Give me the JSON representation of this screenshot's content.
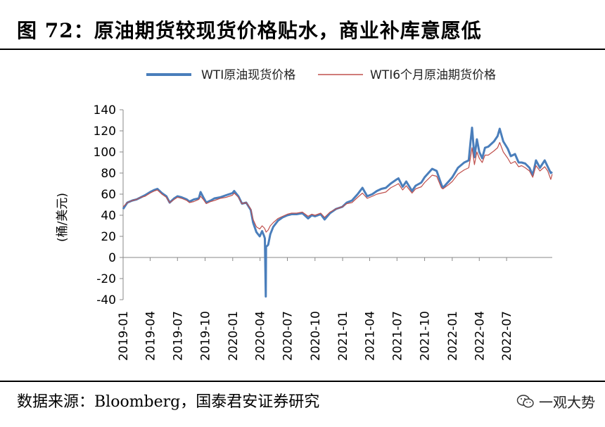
{
  "header": {
    "title": "图 72：原油期货较现货价格贴水，商业补库意愿低"
  },
  "footer": {
    "source": "数据来源：Bloomberg，国泰君安证券研究",
    "watermark": "一观大势"
  },
  "chart_data": {
    "type": "line",
    "title": "",
    "ylabel": "(桶/美元)",
    "ylim": [
      -40,
      140
    ],
    "yticks": [
      140,
      120,
      100,
      80,
      60,
      40,
      20,
      0,
      -20,
      -40
    ],
    "xticks": [
      "2019-01",
      "2019-04",
      "2019-07",
      "2019-10",
      "2020-01",
      "2020-04",
      "2020-07",
      "2020-10",
      "2021-01",
      "2021-04",
      "2021-07",
      "2021-10",
      "2022-01",
      "2022-04",
      "2022-07"
    ],
    "x_range": [
      "2019-01-01",
      "2022-11-30"
    ],
    "legend_position": "top",
    "grid": false,
    "series": [
      {
        "name": "WTI原油现货价格",
        "color": "#4a7ebb",
        "points": [
          [
            "2019-01-01",
            46
          ],
          [
            "2019-01-15",
            52
          ],
          [
            "2019-02-01",
            54
          ],
          [
            "2019-02-15",
            55
          ],
          [
            "2019-03-01",
            57
          ],
          [
            "2019-03-15",
            59
          ],
          [
            "2019-04-01",
            62
          ],
          [
            "2019-04-15",
            64
          ],
          [
            "2019-04-25",
            65
          ],
          [
            "2019-05-10",
            61
          ],
          [
            "2019-05-25",
            58
          ],
          [
            "2019-06-05",
            52
          ],
          [
            "2019-06-20",
            56
          ],
          [
            "2019-07-01",
            58
          ],
          [
            "2019-07-15",
            57
          ],
          [
            "2019-08-01",
            55
          ],
          [
            "2019-08-10",
            53
          ],
          [
            "2019-08-25",
            55
          ],
          [
            "2019-09-10",
            56
          ],
          [
            "2019-09-16",
            62
          ],
          [
            "2019-09-25",
            57
          ],
          [
            "2019-10-05",
            52
          ],
          [
            "2019-10-20",
            54
          ],
          [
            "2019-11-01",
            56
          ],
          [
            "2019-11-20",
            57
          ],
          [
            "2019-12-10",
            59
          ],
          [
            "2019-12-31",
            61
          ],
          [
            "2020-01-06",
            63
          ],
          [
            "2020-01-20",
            58
          ],
          [
            "2020-02-01",
            51
          ],
          [
            "2020-02-15",
            52
          ],
          [
            "2020-03-01",
            45
          ],
          [
            "2020-03-09",
            33
          ],
          [
            "2020-03-20",
            24
          ],
          [
            "2020-03-31",
            20
          ],
          [
            "2020-04-08",
            25
          ],
          [
            "2020-04-15",
            20
          ],
          [
            "2020-04-17",
            18
          ],
          [
            "2020-04-20",
            -37
          ],
          [
            "2020-04-21",
            10
          ],
          [
            "2020-04-28",
            12
          ],
          [
            "2020-05-05",
            22
          ],
          [
            "2020-05-15",
            29
          ],
          [
            "2020-05-31",
            35
          ],
          [
            "2020-06-15",
            38
          ],
          [
            "2020-07-01",
            40
          ],
          [
            "2020-07-15",
            41
          ],
          [
            "2020-08-01",
            41
          ],
          [
            "2020-08-20",
            42
          ],
          [
            "2020-09-08",
            37
          ],
          [
            "2020-09-20",
            40
          ],
          [
            "2020-10-01",
            39
          ],
          [
            "2020-10-20",
            41
          ],
          [
            "2020-11-02",
            36
          ],
          [
            "2020-11-20",
            42
          ],
          [
            "2020-12-10",
            46
          ],
          [
            "2020-12-31",
            48
          ],
          [
            "2021-01-15",
            52
          ],
          [
            "2021-02-01",
            54
          ],
          [
            "2021-02-20",
            60
          ],
          [
            "2021-03-08",
            66
          ],
          [
            "2021-03-24",
            58
          ],
          [
            "2021-04-10",
            60
          ],
          [
            "2021-04-25",
            63
          ],
          [
            "2021-05-10",
            65
          ],
          [
            "2021-05-25",
            66
          ],
          [
            "2021-06-10",
            70
          ],
          [
            "2021-06-30",
            74
          ],
          [
            "2021-07-06",
            75
          ],
          [
            "2021-07-20",
            67
          ],
          [
            "2021-08-01",
            72
          ],
          [
            "2021-08-20",
            63
          ],
          [
            "2021-09-01",
            68
          ],
          [
            "2021-09-20",
            71
          ],
          [
            "2021-10-01",
            76
          ],
          [
            "2021-10-26",
            84
          ],
          [
            "2021-11-10",
            82
          ],
          [
            "2021-11-26",
            69
          ],
          [
            "2021-12-01",
            66
          ],
          [
            "2021-12-20",
            72
          ],
          [
            "2022-01-01",
            76
          ],
          [
            "2022-01-20",
            85
          ],
          [
            "2022-02-10",
            90
          ],
          [
            "2022-02-25",
            92
          ],
          [
            "2022-03-03",
            110
          ],
          [
            "2022-03-08",
            123
          ],
          [
            "2022-03-16",
            95
          ],
          [
            "2022-03-24",
            112
          ],
          [
            "2022-04-01",
            100
          ],
          [
            "2022-04-11",
            94
          ],
          [
            "2022-04-20",
            104
          ],
          [
            "2022-05-01",
            105
          ],
          [
            "2022-05-20",
            110
          ],
          [
            "2022-06-01",
            115
          ],
          [
            "2022-06-08",
            122
          ],
          [
            "2022-06-20",
            110
          ],
          [
            "2022-07-05",
            103
          ],
          [
            "2022-07-15",
            96
          ],
          [
            "2022-07-29",
            98
          ],
          [
            "2022-08-10",
            90
          ],
          [
            "2022-08-20",
            90
          ],
          [
            "2022-09-01",
            89
          ],
          [
            "2022-09-15",
            85
          ],
          [
            "2022-09-26",
            78
          ],
          [
            "2022-10-07",
            92
          ],
          [
            "2022-10-20",
            85
          ],
          [
            "2022-11-05",
            92
          ],
          [
            "2022-11-15",
            86
          ],
          [
            "2022-11-25",
            80
          ],
          [
            "2022-11-30",
            81
          ]
        ]
      },
      {
        "name": "WTI6个月原油期货价格",
        "color": "#c0504d",
        "points": [
          [
            "2019-01-01",
            48
          ],
          [
            "2019-01-15",
            52
          ],
          [
            "2019-02-01",
            54
          ],
          [
            "2019-02-15",
            55
          ],
          [
            "2019-03-01",
            57
          ],
          [
            "2019-03-15",
            58
          ],
          [
            "2019-04-01",
            61
          ],
          [
            "2019-04-15",
            63
          ],
          [
            "2019-04-25",
            64
          ],
          [
            "2019-05-10",
            60
          ],
          [
            "2019-05-25",
            57
          ],
          [
            "2019-06-05",
            52
          ],
          [
            "2019-06-20",
            55
          ],
          [
            "2019-07-01",
            57
          ],
          [
            "2019-07-15",
            56
          ],
          [
            "2019-08-01",
            54
          ],
          [
            "2019-08-10",
            52
          ],
          [
            "2019-08-25",
            53
          ],
          [
            "2019-09-10",
            55
          ],
          [
            "2019-09-16",
            58
          ],
          [
            "2019-09-25",
            55
          ],
          [
            "2019-10-05",
            51
          ],
          [
            "2019-10-20",
            53
          ],
          [
            "2019-11-01",
            54
          ],
          [
            "2019-11-20",
            56
          ],
          [
            "2019-12-10",
            57
          ],
          [
            "2019-12-31",
            59
          ],
          [
            "2020-01-06",
            61
          ],
          [
            "2020-01-20",
            57
          ],
          [
            "2020-02-01",
            51
          ],
          [
            "2020-02-15",
            52
          ],
          [
            "2020-03-01",
            46
          ],
          [
            "2020-03-09",
            36
          ],
          [
            "2020-03-20",
            29
          ],
          [
            "2020-03-31",
            27
          ],
          [
            "2020-04-08",
            30
          ],
          [
            "2020-04-15",
            28
          ],
          [
            "2020-04-17",
            27
          ],
          [
            "2020-04-20",
            25
          ],
          [
            "2020-04-21",
            24
          ],
          [
            "2020-04-28",
            26
          ],
          [
            "2020-05-05",
            30
          ],
          [
            "2020-05-15",
            33
          ],
          [
            "2020-05-31",
            37
          ],
          [
            "2020-06-15",
            39
          ],
          [
            "2020-07-01",
            41
          ],
          [
            "2020-07-15",
            42
          ],
          [
            "2020-08-01",
            42
          ],
          [
            "2020-08-20",
            43
          ],
          [
            "2020-09-08",
            39
          ],
          [
            "2020-09-20",
            41
          ],
          [
            "2020-10-01",
            40
          ],
          [
            "2020-10-20",
            42
          ],
          [
            "2020-11-02",
            38
          ],
          [
            "2020-11-20",
            43
          ],
          [
            "2020-12-10",
            46
          ],
          [
            "2020-12-31",
            48
          ],
          [
            "2021-01-15",
            51
          ],
          [
            "2021-02-01",
            52
          ],
          [
            "2021-02-20",
            57
          ],
          [
            "2021-03-08",
            61
          ],
          [
            "2021-03-24",
            56
          ],
          [
            "2021-04-10",
            58
          ],
          [
            "2021-04-25",
            60
          ],
          [
            "2021-05-10",
            61
          ],
          [
            "2021-05-25",
            62
          ],
          [
            "2021-06-10",
            66
          ],
          [
            "2021-06-30",
            69
          ],
          [
            "2021-07-06",
            70
          ],
          [
            "2021-07-20",
            64
          ],
          [
            "2021-08-01",
            68
          ],
          [
            "2021-08-20",
            61
          ],
          [
            "2021-09-01",
            65
          ],
          [
            "2021-09-20",
            67
          ],
          [
            "2021-10-01",
            71
          ],
          [
            "2021-10-26",
            78
          ],
          [
            "2021-11-10",
            77
          ],
          [
            "2021-11-26",
            66
          ],
          [
            "2021-12-01",
            65
          ],
          [
            "2021-12-20",
            69
          ],
          [
            "2022-01-01",
            72
          ],
          [
            "2022-01-20",
            79
          ],
          [
            "2022-02-10",
            83
          ],
          [
            "2022-02-25",
            85
          ],
          [
            "2022-03-03",
            95
          ],
          [
            "2022-03-08",
            104
          ],
          [
            "2022-03-16",
            88
          ],
          [
            "2022-03-24",
            100
          ],
          [
            "2022-04-01",
            94
          ],
          [
            "2022-04-11",
            90
          ],
          [
            "2022-04-20",
            97
          ],
          [
            "2022-05-01",
            97
          ],
          [
            "2022-05-20",
            101
          ],
          [
            "2022-06-01",
            104
          ],
          [
            "2022-06-08",
            109
          ],
          [
            "2022-06-20",
            100
          ],
          [
            "2022-07-05",
            94
          ],
          [
            "2022-07-15",
            89
          ],
          [
            "2022-07-29",
            91
          ],
          [
            "2022-08-10",
            86
          ],
          [
            "2022-08-20",
            87
          ],
          [
            "2022-09-01",
            85
          ],
          [
            "2022-09-15",
            82
          ],
          [
            "2022-09-26",
            76
          ],
          [
            "2022-10-07",
            87
          ],
          [
            "2022-10-20",
            82
          ],
          [
            "2022-11-05",
            86
          ],
          [
            "2022-11-15",
            82
          ],
          [
            "2022-11-25",
            74
          ],
          [
            "2022-11-30",
            79
          ]
        ]
      }
    ]
  }
}
